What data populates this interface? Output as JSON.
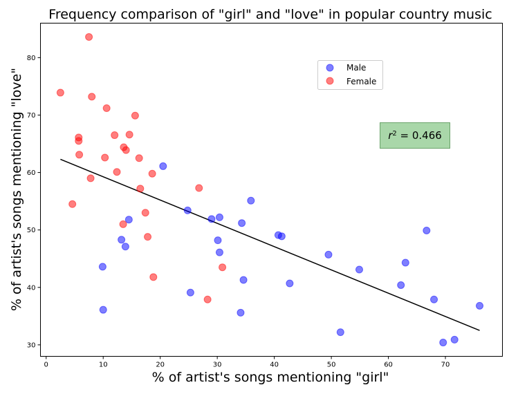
{
  "chart_data": {
    "type": "scatter",
    "title": "Frequency comparison of \"girl\" and \"love\" in popular country music",
    "xlabel": "% of artist's songs mentioning \"girl\"",
    "ylabel": "% of artist's songs mentioning \"love\"",
    "xlim": [
      -1,
      80
    ],
    "ylim": [
      28,
      86
    ],
    "xticks": [
      "0",
      "10",
      "20",
      "30",
      "40",
      "50",
      "60",
      "70"
    ],
    "yticks": [
      "30",
      "40",
      "50",
      "60",
      "70",
      "80"
    ],
    "grid": false,
    "legend_position": "upper-right",
    "series": [
      {
        "name": "Male",
        "color": "#0000ff",
        "points": [
          [
            20.5,
            61.1
          ],
          [
            24.8,
            53.4
          ],
          [
            29.0,
            51.9
          ],
          [
            30.4,
            52.2
          ],
          [
            35.9,
            55.1
          ],
          [
            34.3,
            51.2
          ],
          [
            14.5,
            51.8
          ],
          [
            13.2,
            48.3
          ],
          [
            13.9,
            47.1
          ],
          [
            30.1,
            48.2
          ],
          [
            30.4,
            46.1
          ],
          [
            40.7,
            49.1
          ],
          [
            41.3,
            48.9
          ],
          [
            9.9,
            43.6
          ],
          [
            10.0,
            36.1
          ],
          [
            25.3,
            39.1
          ],
          [
            34.1,
            35.6
          ],
          [
            34.6,
            41.3
          ],
          [
            42.7,
            40.7
          ],
          [
            49.5,
            45.7
          ],
          [
            54.9,
            43.1
          ],
          [
            51.6,
            32.2
          ],
          [
            62.2,
            40.4
          ],
          [
            63.0,
            44.3
          ],
          [
            66.7,
            49.9
          ],
          [
            68.0,
            37.9
          ],
          [
            69.6,
            30.4
          ],
          [
            71.6,
            30.9
          ],
          [
            76.0,
            36.8
          ]
        ]
      },
      {
        "name": "Female",
        "color": "#ff0000",
        "points": [
          [
            7.5,
            83.6
          ],
          [
            2.5,
            73.9
          ],
          [
            8.0,
            73.2
          ],
          [
            10.6,
            71.2
          ],
          [
            15.6,
            69.9
          ],
          [
            5.7,
            66.1
          ],
          [
            5.7,
            65.5
          ],
          [
            12.0,
            66.5
          ],
          [
            14.6,
            66.6
          ],
          [
            5.8,
            63.1
          ],
          [
            13.6,
            64.4
          ],
          [
            14.0,
            63.9
          ],
          [
            10.3,
            62.6
          ],
          [
            16.3,
            62.5
          ],
          [
            12.4,
            60.1
          ],
          [
            18.6,
            59.8
          ],
          [
            7.8,
            59.0
          ],
          [
            16.5,
            57.2
          ],
          [
            26.8,
            57.3
          ],
          [
            4.6,
            54.5
          ],
          [
            17.4,
            53.0
          ],
          [
            13.5,
            51.0
          ],
          [
            17.8,
            48.8
          ],
          [
            18.8,
            41.8
          ],
          [
            30.9,
            43.5
          ],
          [
            28.3,
            37.9
          ]
        ]
      }
    ],
    "regression_line": {
      "x": [
        2.5,
        76.0
      ],
      "y": [
        62.3,
        32.5
      ],
      "color": "#000000"
    },
    "annotation": {
      "text": "r² = 0.466",
      "label_pre": "r",
      "label_sup": "2",
      "label_post": " = 0.466",
      "background": "#a9d7a9",
      "border": "#6aa36a"
    }
  }
}
